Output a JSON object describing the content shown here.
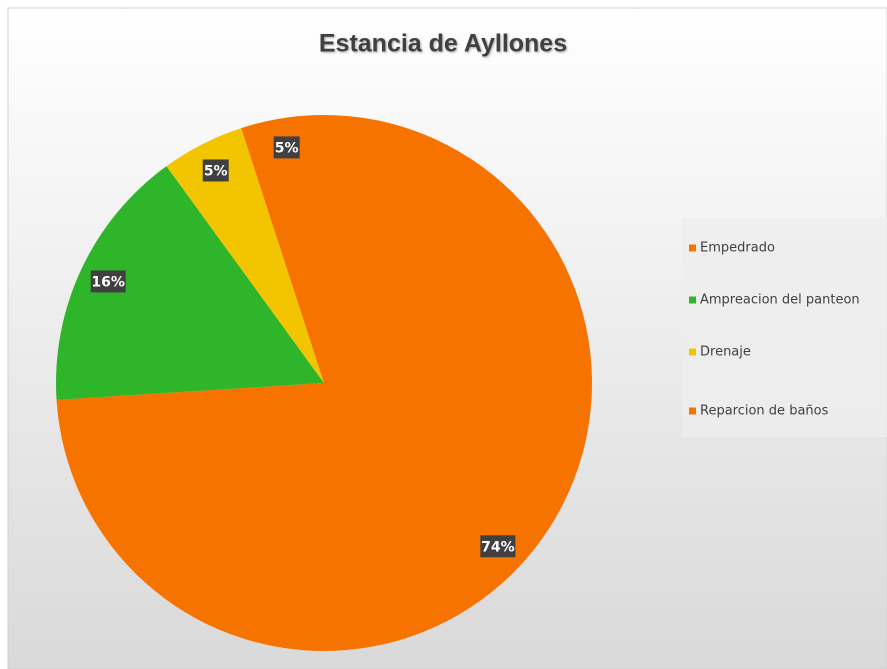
{
  "chart_data": {
    "type": "pie",
    "title": "Estancia de Ayllones",
    "categories": [
      "Empedrado",
      "Ampreacion del panteon",
      "Drenaje",
      "Reparcion de baños"
    ],
    "values": [
      74,
      16,
      5,
      5
    ],
    "value_labels": [
      "74%",
      "16%",
      "5%",
      "5%"
    ],
    "colors": [
      "#f77300",
      "#2fb52a",
      "#f2c500",
      "#f77300"
    ],
    "legend": "right"
  }
}
